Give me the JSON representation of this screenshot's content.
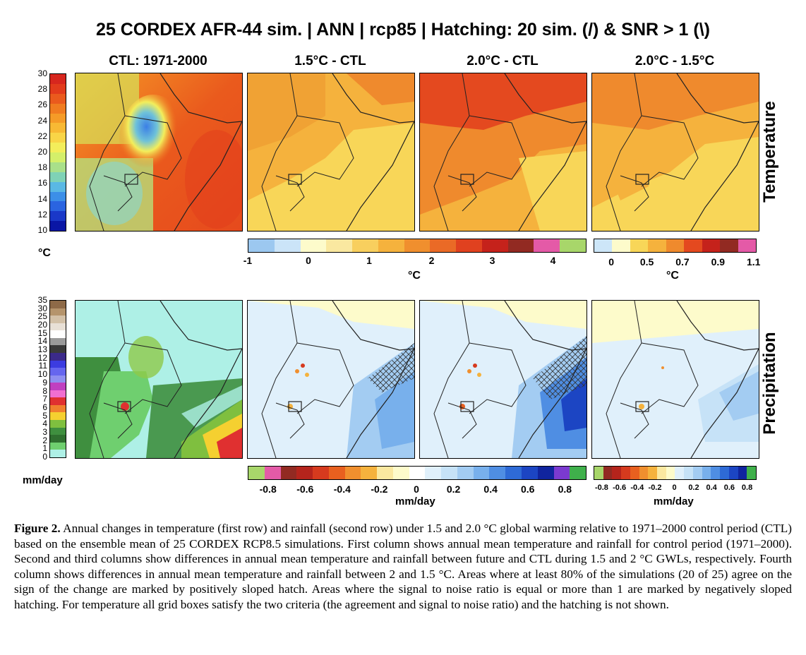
{
  "figure": {
    "title": "25 CORDEX AFR-44 sim. | ANN | rcp85 | Hatching: 20 sim. (/) & SNR > 1 (\\)",
    "column_titles": [
      "CTL: 1971-2000",
      "1.5°C - CTL",
      "2.0°C - CTL",
      "2.0°C - 1.5°C"
    ],
    "row_labels": [
      "Temperature",
      "Precipitation"
    ]
  },
  "colorbars": {
    "temp_ctl": {
      "ticks": [
        "30",
        "28",
        "26",
        "24",
        "22",
        "20",
        "18",
        "16",
        "14",
        "12",
        "10"
      ],
      "unit": "°C",
      "colors": [
        "#d7261e",
        "#e23b1c",
        "#ea5a1d",
        "#f07c20",
        "#f59b27",
        "#f8b934",
        "#f9d547",
        "#f3ee5b",
        "#d4ef6a",
        "#a9e08a",
        "#7fd2b6",
        "#5ab8e4",
        "#3c8fe8",
        "#2a64e0",
        "#1a38c8",
        "#0a16a5"
      ]
    },
    "temp_diff": {
      "ticks": [
        "-1",
        "0",
        "1",
        "2",
        "3",
        "4"
      ],
      "unit": "°C",
      "colors": [
        "#9cc8f0",
        "#cbe4f8",
        "#fdfbcb",
        "#fae8a0",
        "#f8cf5e",
        "#f5b23d",
        "#f08f2e",
        "#ea6a26",
        "#e0411f",
        "#c5221b",
        "#922a22",
        "#e45aa7",
        "#a8d66a"
      ]
    },
    "temp_inc": {
      "ticks": [
        "0",
        "0.5",
        "0.7",
        "0.9",
        "1.1"
      ],
      "unit": "°C",
      "colors": [
        "#cde6f8",
        "#fdfbcb",
        "#f8d658",
        "#f5b23d",
        "#ef8a2d",
        "#e4491f",
        "#c5221b",
        "#922a22",
        "#e45aa7"
      ]
    },
    "precip_ctl": {
      "ticks": [
        "35",
        "30",
        "25",
        "20",
        "15",
        "14",
        "13",
        "12",
        "11",
        "10",
        "9",
        "8",
        "7",
        "6",
        "5",
        "4",
        "3",
        "2",
        "1",
        "0"
      ],
      "unit": "mm/day",
      "colors": [
        "#8e6a48",
        "#b5946c",
        "#d3c1a8",
        "#e8e0d6",
        "#ffffff",
        "#9a9a9a",
        "#3a3a3a",
        "#3b2a8a",
        "#3c3ce0",
        "#6666ee",
        "#8f8ff0",
        "#c040c0",
        "#f06fd0",
        "#e03030",
        "#f07f2e",
        "#f5d030",
        "#7fbf3f",
        "#3f8f3f",
        "#2f6f2f",
        "#6fcf6f",
        "#aef0e6"
      ]
    },
    "precip_diff": {
      "ticks": [
        "-0.8",
        "-0.6",
        "-0.4",
        "-0.2",
        "0",
        "0.2",
        "0.4",
        "0.6",
        "0.8"
      ],
      "unit": "mm/day",
      "colors": [
        "#a8d66a",
        "#e45aa7",
        "#922a22",
        "#b5241c",
        "#d63a1e",
        "#e8601f",
        "#f08f2e",
        "#f5b23d",
        "#fae8a0",
        "#fdfbcb",
        "#ffffff",
        "#e0f0fb",
        "#c6e2f7",
        "#a3ccf2",
        "#78b0ec",
        "#4f8ee3",
        "#2e6ad6",
        "#1c45c3",
        "#10249e",
        "#7b3ad0",
        "#3fb04b"
      ]
    },
    "precip_inc": {
      "ticks": [
        "-0.8",
        "-0.6",
        "-0.4",
        "-0.2",
        "0",
        "0.2",
        "0.4",
        "0.6",
        "0.8"
      ],
      "unit": "mm/day",
      "colors": [
        "#a8d66a",
        "#922a22",
        "#b5241c",
        "#d63a1e",
        "#e8601f",
        "#f08f2e",
        "#f5b23d",
        "#fae8a0",
        "#fdfbcb",
        "#e0f0fb",
        "#c6e2f7",
        "#a3ccf2",
        "#78b0ec",
        "#4f8ee3",
        "#2e6ad6",
        "#1c45c3",
        "#10249e",
        "#3fb04b"
      ]
    }
  },
  "caption": {
    "label": "Figure 2.",
    "text": "Annual changes in temperature (first row) and rainfall (second row) under 1.5 and 2.0 °C global warming relative to 1971–2000 control period (CTL) based on the ensemble mean of 25 CORDEX RCP8.5 simulations. First column shows annual mean temperature and rainfall for control period (1971–2000). Second and third columns show differences in annual mean temperature and rainfall between future and CTL during 1.5 and 2 °C GWLs, respectively. Fourth column shows differences in annual mean temperature and rainfall between 2 and 1.5 °C. Areas where at least 80% of the simulations (20 of 25) agree on the sign of the change are marked by positively sloped hatch. Areas where the signal to noise ratio is equal or more than 1 are marked by negatively sloped hatching. For temperature all grid boxes satisfy the two criteria (the agreement and signal to noise ratio) and the hatching is not shown."
  }
}
